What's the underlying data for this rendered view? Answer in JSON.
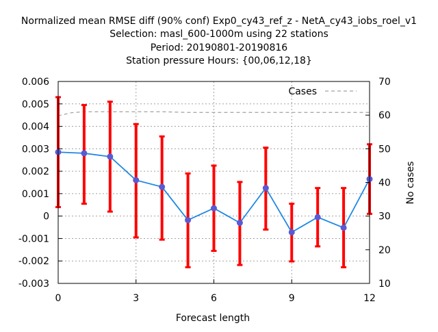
{
  "chart_data": {
    "type": "line",
    "title_lines": [
      "Normalized mean RMSE diff (90% conf) Exp0_cy43_ref_z - NetA_cy43_iobs_roel_v1",
      "Selection: masl_600-1000m using    22 stations",
      "Period: 20190801-20190816",
      "Station pressure   Hours: {00,06,12,18}"
    ],
    "xlabel": "Forecast length",
    "ylabel": "",
    "y2label": "No cases",
    "xlim": [
      0,
      12
    ],
    "ylim": [
      -0.003,
      0.006
    ],
    "y2lim": [
      10,
      70
    ],
    "x_ticks": [
      "0",
      "3",
      "6",
      "9",
      "12"
    ],
    "x_tick_values": [
      0,
      3,
      6,
      9,
      12
    ],
    "y_ticks": [
      "-0.003",
      "-0.002",
      "-0.001",
      "0",
      "0.001",
      "0.002",
      "0.003",
      "0.004",
      "0.005",
      "0.006"
    ],
    "y_tick_values": [
      -0.003,
      -0.002,
      -0.001,
      0,
      0.001,
      0.002,
      0.003,
      0.004,
      0.005,
      0.006
    ],
    "y2_ticks": [
      "10",
      "20",
      "30",
      "40",
      "50",
      "60",
      "70"
    ],
    "y2_tick_values": [
      10,
      20,
      30,
      40,
      50,
      60,
      70
    ],
    "grid": true,
    "legend_position": "top-right",
    "series": [
      {
        "x": [
          0,
          1,
          2,
          3,
          4,
          5,
          6,
          7,
          8,
          9,
          10,
          11,
          12
        ],
        "values": [
          0.00285,
          0.0028,
          0.00265,
          0.0016,
          0.0013,
          -0.00018,
          0.00035,
          -0.0003,
          0.00125,
          -0.00072,
          -5e-05,
          -0.00052,
          0.00165
        ],
        "error_low": [
          0.0004,
          0.00055,
          0.0002,
          -0.00095,
          -0.00105,
          -0.00228,
          -0.00155,
          -0.00218,
          -0.0006,
          -0.00202,
          -0.00135,
          -0.00228,
          0.0001
        ],
        "error_high": [
          0.0053,
          0.00495,
          0.0051,
          0.0041,
          0.00355,
          0.0019,
          0.00225,
          0.00152,
          0.00305,
          0.00055,
          0.00125,
          0.00125,
          0.0032
        ],
        "color": "#1e88e5",
        "marker_color": "#5a5ad2",
        "error_color": "#ff0000"
      },
      {
        "name": "Cases",
        "axis": "right",
        "x": [
          0,
          0.5,
          1,
          1.5,
          2,
          3,
          4,
          5,
          6,
          7,
          8,
          9,
          10,
          11,
          12
        ],
        "values": [
          59.8,
          60.7,
          61.0,
          61.0,
          61.0,
          61.0,
          61.0,
          60.8,
          60.8,
          60.8,
          60.8,
          60.8,
          60.8,
          60.8,
          60.8
        ],
        "color": "#a0a0a0",
        "style": "dashed"
      }
    ]
  }
}
